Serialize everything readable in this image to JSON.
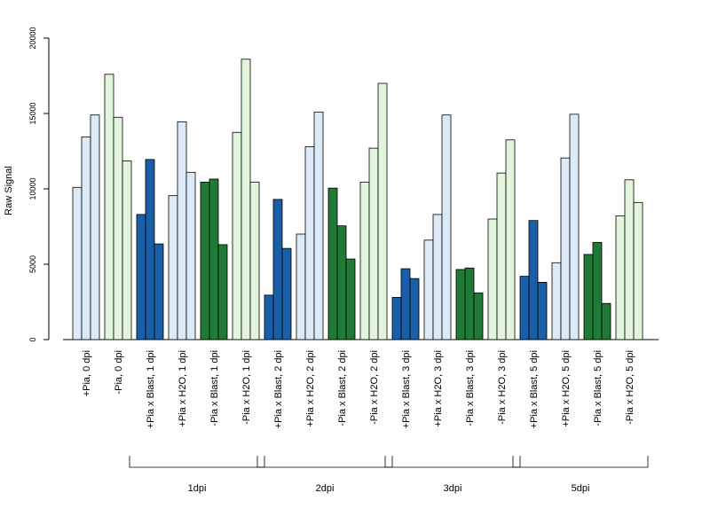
{
  "chart_data": {
    "type": "bar",
    "ylabel": "Raw Signal",
    "ylim": [
      0,
      20000
    ],
    "yticks": [
      0,
      5000,
      10000,
      15000,
      20000
    ],
    "grid": false,
    "legend": "none",
    "categories": [
      "+Pia, 0 dpi",
      "-Pia, 0 dpi",
      "+Pia x Blast, 1 dpi",
      "+Pia x H2O, 1 dpi",
      "-Pia x Blast, 1 dpi",
      "-Pia x H2O, 1 dpi",
      "+Pia x Blast, 2 dpi",
      "+Pia x H2O, 2 dpi",
      "-Pia x Blast, 2 dpi",
      "-Pia x H2O, 2 dpi",
      "+Pia x Blast, 3 dpi",
      "+Pia x H2O, 3 dpi",
      "-Pia x Blast, 3 dpi",
      "-Pia x H2O, 3 dpi",
      "+Pia x Blast, 5 dpi",
      "+Pia x H2O, 5 dpi",
      "-Pia x Blast, 5 dpi",
      "-Pia x H2O, 5 dpi"
    ],
    "colors": [
      "#dce9f7",
      "#e2f5dc",
      "#1a5ea8",
      "#dce9f7",
      "#1e7a34",
      "#e2f5dc",
      "#1a5ea8",
      "#dce9f7",
      "#1e7a34",
      "#e2f5dc",
      "#1a5ea8",
      "#dce9f7",
      "#1e7a34",
      "#e2f5dc",
      "#1a5ea8",
      "#dce9f7",
      "#1e7a34",
      "#e2f5dc"
    ],
    "values": [
      [
        10100,
        13450,
        14900
      ],
      [
        17600,
        14750,
        11850
      ],
      [
        8300,
        11950,
        6350
      ],
      [
        9550,
        14450,
        11100
      ],
      [
        10450,
        10650,
        6300
      ],
      [
        13750,
        18600,
        10450
      ],
      [
        2950,
        9300,
        6050
      ],
      [
        7000,
        12800,
        15100
      ],
      [
        10050,
        7550,
        5350
      ],
      [
        10450,
        12700,
        17000
      ],
      [
        2800,
        4700,
        4050
      ],
      [
        6600,
        8300,
        14900
      ],
      [
        4650,
        4750,
        3100
      ],
      [
        8000,
        11050,
        13250
      ],
      [
        4200,
        7900,
        3800
      ],
      [
        5100,
        12050,
        14950
      ],
      [
        5650,
        6450,
        2400
      ],
      [
        8200,
        10600,
        9100
      ]
    ],
    "groups": [
      {
        "label": "1dpi",
        "start": 2,
        "end": 5
      },
      {
        "label": "2dpi",
        "start": 6,
        "end": 9
      },
      {
        "label": "3dpi",
        "start": 10,
        "end": 13
      },
      {
        "label": "5dpi",
        "start": 14,
        "end": 17
      }
    ]
  }
}
